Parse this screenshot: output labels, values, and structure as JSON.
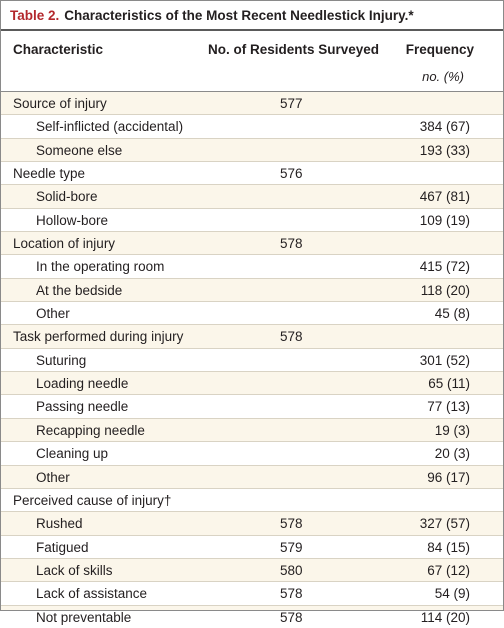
{
  "table": {
    "number_label": "Table 2.",
    "title": "Characteristics of the Most Recent Needlestick Injury.*",
    "columns": {
      "characteristic": "Characteristic",
      "residents": "No. of Residents Surveyed",
      "frequency": "Frequency",
      "frequency_unit": "no. (%)"
    },
    "rows": [
      {
        "label": "Source of injury",
        "residents": "577",
        "frequency": "",
        "sub": false
      },
      {
        "label": "Self-inflicted (accidental)",
        "residents": "",
        "frequency": "384 (67)",
        "sub": true
      },
      {
        "label": "Someone else",
        "residents": "",
        "frequency": "193 (33)",
        "sub": true
      },
      {
        "label": "Needle type",
        "residents": "576",
        "frequency": "",
        "sub": false
      },
      {
        "label": "Solid-bore",
        "residents": "",
        "frequency": "467 (81)",
        "sub": true
      },
      {
        "label": "Hollow-bore",
        "residents": "",
        "frequency": "109 (19)",
        "sub": true
      },
      {
        "label": "Location of injury",
        "residents": "578",
        "frequency": "",
        "sub": false
      },
      {
        "label": "In the operating room",
        "residents": "",
        "frequency": "415 (72)",
        "sub": true
      },
      {
        "label": "At the bedside",
        "residents": "",
        "frequency": "118 (20)",
        "sub": true
      },
      {
        "label": "Other",
        "residents": "",
        "frequency": "45 (8)",
        "sub": true
      },
      {
        "label": "Task performed during injury",
        "residents": "578",
        "frequency": "",
        "sub": false
      },
      {
        "label": "Suturing",
        "residents": "",
        "frequency": "301 (52)",
        "sub": true
      },
      {
        "label": "Loading needle",
        "residents": "",
        "frequency": "65 (11)",
        "sub": true
      },
      {
        "label": "Passing needle",
        "residents": "",
        "frequency": "77 (13)",
        "sub": true
      },
      {
        "label": "Recapping needle",
        "residents": "",
        "frequency": "19 (3)",
        "sub": true
      },
      {
        "label": "Cleaning up",
        "residents": "",
        "frequency": "20 (3)",
        "sub": true
      },
      {
        "label": "Other",
        "residents": "",
        "frequency": "96 (17)",
        "sub": true
      },
      {
        "label": "Perceived cause of injury†",
        "residents": "",
        "frequency": "",
        "sub": false
      },
      {
        "label": "Rushed",
        "residents": "578",
        "frequency": "327 (57)",
        "sub": true
      },
      {
        "label": "Fatigued",
        "residents": "579",
        "frequency": "84 (15)",
        "sub": true
      },
      {
        "label": "Lack of skills",
        "residents": "580",
        "frequency": "67 (12)",
        "sub": true
      },
      {
        "label": "Lack of assistance",
        "residents": "578",
        "frequency": "54 (9)",
        "sub": true
      },
      {
        "label": "Not preventable",
        "residents": "578",
        "frequency": "114 (20)",
        "sub": true
      }
    ]
  },
  "colors": {
    "table_number": "#b3282d",
    "stripe": "#fbf6ea",
    "background": "#ffffff"
  }
}
